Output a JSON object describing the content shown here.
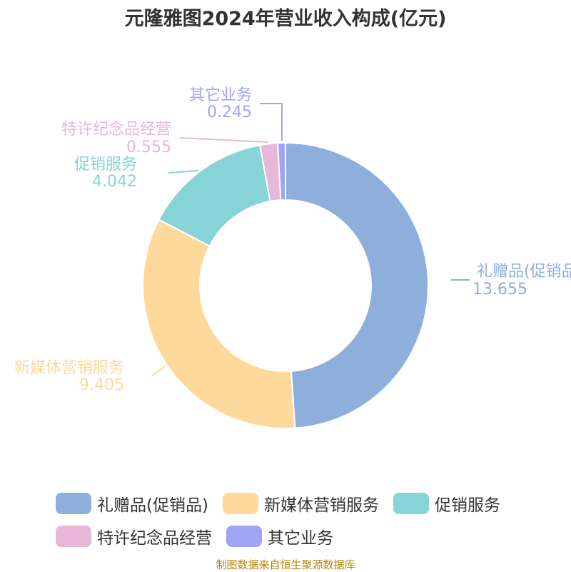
{
  "title": "元隆雅图2024年营业收入构成(亿元)",
  "source": "制图数据来自恒生聚源数据库",
  "chart_data": {
    "type": "pie",
    "donut": true,
    "title": "元隆雅图2024年营业收入构成(亿元)",
    "categories": [
      "礼赠品(促销品)",
      "新媒体营销服务",
      "促销服务",
      "特许纪念品经营",
      "其它业务"
    ],
    "values": [
      13.655,
      9.405,
      4.042,
      0.555,
      0.245
    ],
    "value_labels": [
      "13.655",
      "9.405",
      "4.042",
      "0.555",
      "0.245"
    ],
    "colors": [
      "#8eaedb",
      "#fdd99b",
      "#86d4d8",
      "#e8b6d6",
      "#a0a4f4"
    ],
    "legend_position": "bottom"
  }
}
